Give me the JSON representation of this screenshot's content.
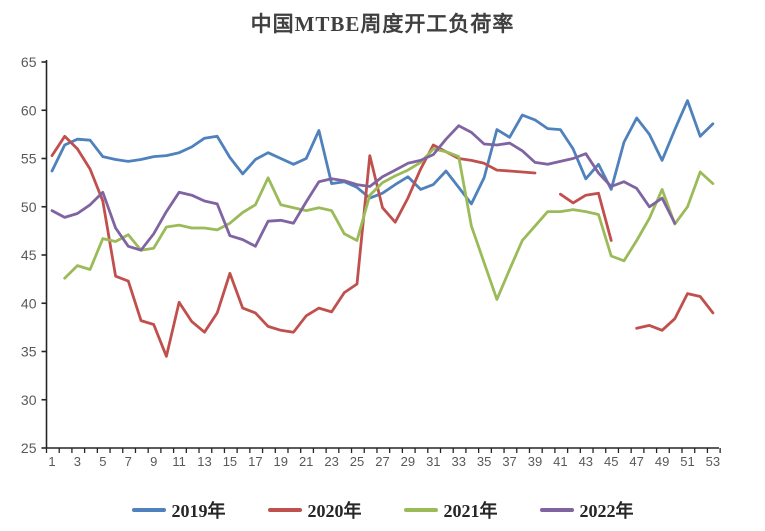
{
  "title": "中国MTBE周度开工负荷率",
  "axis_color": "#262626",
  "tick_label_color": "#595959",
  "chart_data": {
    "type": "line",
    "title": "中国MTBE周度开工负荷率",
    "xlabel": "",
    "ylabel": "",
    "x": [
      1,
      2,
      3,
      4,
      5,
      6,
      7,
      8,
      9,
      10,
      11,
      12,
      13,
      14,
      15,
      16,
      17,
      18,
      19,
      20,
      21,
      22,
      23,
      24,
      25,
      26,
      27,
      28,
      29,
      30,
      31,
      32,
      33,
      34,
      35,
      36,
      37,
      38,
      39,
      40,
      41,
      42,
      43,
      44,
      45,
      46,
      47,
      48,
      49,
      50,
      51,
      52,
      53
    ],
    "x_tick_labels": [
      1,
      3,
      5,
      7,
      9,
      11,
      13,
      15,
      17,
      19,
      21,
      23,
      25,
      27,
      29,
      31,
      33,
      35,
      37,
      39,
      41,
      43,
      45,
      47,
      49,
      51,
      53
    ],
    "ylim": [
      25,
      65
    ],
    "y_ticks": [
      25,
      30,
      35,
      40,
      45,
      50,
      55,
      60,
      65
    ],
    "grid": false,
    "legend_position": "bottom",
    "series": [
      {
        "name": "2019年",
        "color": "#4F81BD",
        "values": [
          53.7,
          56.4,
          57.0,
          56.9,
          55.2,
          54.9,
          54.7,
          54.9,
          55.2,
          55.3,
          55.6,
          56.2,
          57.1,
          57.3,
          55.1,
          53.4,
          54.9,
          55.6,
          55.0,
          54.4,
          55.0,
          57.9,
          52.4,
          52.6,
          52.0,
          50.9,
          51.4,
          52.3,
          53.1,
          51.8,
          52.3,
          53.7,
          52.0,
          50.3,
          53.0,
          58.0,
          57.2,
          59.5,
          59.0,
          58.1,
          58.0,
          56.0,
          52.9,
          54.4,
          51.8,
          56.7,
          59.2,
          57.5,
          54.8,
          58.0,
          61.0,
          57.3,
          58.6
        ]
      },
      {
        "name": "2020年",
        "color": "#C0504D",
        "values": [
          55.3,
          57.3,
          56.0,
          53.9,
          50.6,
          42.8,
          42.3,
          38.2,
          37.8,
          34.5,
          40.1,
          38.1,
          37.0,
          39.0,
          43.1,
          39.5,
          39.0,
          37.6,
          37.2,
          37.0,
          38.7,
          39.5,
          39.1,
          41.1,
          42.0,
          55.3,
          49.9,
          48.4,
          50.9,
          53.9,
          56.4,
          55.7,
          55.0,
          54.8,
          54.5,
          53.8,
          53.7,
          53.6,
          53.5,
          null,
          51.3,
          50.4,
          51.2,
          51.4,
          46.5,
          null,
          37.4,
          37.7,
          37.2,
          38.4,
          41.0,
          40.7,
          39.0
        ]
      },
      {
        "name": "2021年",
        "color": "#9BBB59",
        "values": [
          null,
          42.6,
          43.9,
          43.5,
          46.7,
          46.4,
          47.1,
          45.5,
          45.7,
          47.9,
          48.1,
          47.8,
          47.8,
          47.6,
          48.3,
          49.4,
          50.2,
          53.0,
          50.2,
          49.9,
          49.6,
          49.9,
          49.6,
          47.2,
          46.5,
          51.2,
          52.5,
          53.2,
          53.8,
          54.6,
          56.0,
          55.7,
          55.2,
          48.0,
          44.2,
          40.4,
          43.5,
          46.5,
          48.0,
          49.5,
          49.5,
          49.7,
          49.5,
          49.2,
          44.9,
          44.4,
          46.5,
          48.8,
          51.8,
          48.2,
          50.0,
          53.6,
          52.4
        ]
      },
      {
        "name": "2022年",
        "color": "#8064A2",
        "values": [
          49.6,
          48.9,
          49.3,
          50.2,
          51.5,
          47.8,
          45.9,
          45.5,
          47.2,
          49.5,
          51.5,
          51.2,
          50.6,
          50.3,
          47.0,
          46.6,
          45.9,
          48.5,
          48.6,
          48.3,
          50.5,
          52.6,
          52.9,
          52.7,
          52.3,
          52.1,
          53.1,
          53.8,
          54.5,
          54.8,
          55.4,
          57.0,
          58.4,
          57.7,
          56.5,
          56.4,
          56.6,
          55.8,
          54.6,
          54.4,
          54.7,
          55.0,
          55.5,
          53.5,
          52.1,
          52.6,
          51.9,
          50.0,
          50.9,
          48.3,
          null,
          null,
          null
        ]
      }
    ]
  }
}
